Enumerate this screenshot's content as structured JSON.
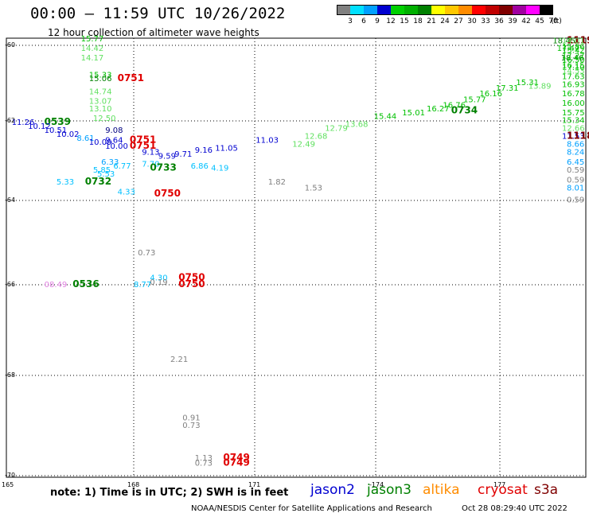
{
  "header": {
    "title": "00:00 – 11:59 UTC 10/26/2022",
    "subtitle": "12 hour collection of altimeter wave heights"
  },
  "colorbar": {
    "unit": "(ft)",
    "labels": [
      "3",
      "6",
      "9",
      "12",
      "15",
      "18",
      "21",
      "24",
      "27",
      "30",
      "33",
      "36",
      "39",
      "42",
      "45",
      "70"
    ],
    "colors": [
      "#808080",
      "#00e0ff",
      "#00a0ff",
      "#0000d0",
      "#00d000",
      "#00b000",
      "#008000",
      "#ffff00",
      "#ffc800",
      "#ff8c00",
      "#ff0000",
      "#c00000",
      "#800000",
      "#a000a0",
      "#ff00ff",
      "#000000"
    ]
  },
  "axes": {
    "lat_labels": [
      "-60",
      "-62",
      "-64",
      "-66",
      "-68",
      "-70"
    ],
    "lon_labels": [
      "165",
      "168",
      "171",
      "-174",
      "177"
    ]
  },
  "note": "note: 1) Time is in UTC; 2) SWH is in feet",
  "legend": [
    {
      "name": "jason2",
      "color": "#0000d0"
    },
    {
      "name": "jason3",
      "color": "#008000"
    },
    {
      "name": "altika",
      "color": "#ff8c00"
    },
    {
      "name": "cryosat",
      "color": "#e00000"
    },
    {
      "name": "s3a",
      "color": "#800000"
    }
  ],
  "footer": {
    "credit": "NOAA/NESDIS Center for Satellite Applications and Research",
    "timestamp": "Oct 28 08:29:40 UTC 2022"
  },
  "labels": [
    {
      "t": "15.77",
      "lon": 166.7,
      "lat": -59.9,
      "c": "#00c000"
    },
    {
      "t": "14.42",
      "lon": 166.7,
      "lat": -60.15,
      "c": "#60e060"
    },
    {
      "t": "14.17",
      "lon": 166.7,
      "lat": -60.4,
      "c": "#60e060"
    },
    {
      "t": "15.33",
      "lon": 166.9,
      "lat": -60.85,
      "c": "#00c000"
    },
    {
      "t": "15.06",
      "lon": 166.9,
      "lat": -60.95,
      "c": "#008000"
    },
    {
      "t": "0751",
      "lon": 167.6,
      "lat": -60.95,
      "c": "#e00000",
      "b": 1
    },
    {
      "t": "14.74",
      "lon": 166.9,
      "lat": -61.3,
      "c": "#60e060"
    },
    {
      "t": "13.07",
      "lon": 166.9,
      "lat": -61.55,
      "c": "#60e060"
    },
    {
      "t": "13.10",
      "lon": 166.9,
      "lat": -61.75,
      "c": "#60e060"
    },
    {
      "t": "12.50",
      "lon": 167.0,
      "lat": -62.0,
      "c": "#60e060"
    },
    {
      "t": "11.26",
      "lon": 165.0,
      "lat": -62.1,
      "c": "#0000d0"
    },
    {
      "t": "0539",
      "lon": 165.8,
      "lat": -62.1,
      "c": "#008000",
      "b": 1
    },
    {
      "t": "10.12",
      "lon": 165.4,
      "lat": -62.2,
      "c": "#0000d0"
    },
    {
      "t": "10.51",
      "lon": 165.8,
      "lat": -62.3,
      "c": "#0000d0"
    },
    {
      "t": "10.02",
      "lon": 166.1,
      "lat": -62.4,
      "c": "#0000d0"
    },
    {
      "t": "9.08",
      "lon": 167.3,
      "lat": -62.3,
      "c": "#000080"
    },
    {
      "t": "8.61",
      "lon": 166.6,
      "lat": -62.5,
      "c": "#00a0ff"
    },
    {
      "t": "10.09",
      "lon": 166.9,
      "lat": -62.6,
      "c": "#0000d0"
    },
    {
      "t": "9.64",
      "lon": 167.3,
      "lat": -62.55,
      "c": "#0000d0"
    },
    {
      "t": "0751",
      "lon": 167.9,
      "lat": -62.55,
      "c": "#e00000",
      "b": 1
    },
    {
      "t": "10.00",
      "lon": 167.3,
      "lat": -62.7,
      "c": "#0000d0"
    },
    {
      "t": "0751",
      "lon": 167.9,
      "lat": -62.7,
      "c": "#e00000",
      "b": 1
    },
    {
      "t": "9.13",
      "lon": 168.2,
      "lat": -62.85,
      "c": "#0000d0"
    },
    {
      "t": "9.59",
      "lon": 168.6,
      "lat": -62.95,
      "c": "#0000d0"
    },
    {
      "t": "9.71",
      "lon": 169.0,
      "lat": -62.9,
      "c": "#0000d0"
    },
    {
      "t": "9.16",
      "lon": 169.5,
      "lat": -62.8,
      "c": "#0000d0"
    },
    {
      "t": "11.05",
      "lon": 170.0,
      "lat": -62.75,
      "c": "#0000d0"
    },
    {
      "t": "11.03",
      "lon": 171.0,
      "lat": -62.55,
      "c": "#0000d0"
    },
    {
      "t": "12.49",
      "lon": 171.9,
      "lat": -62.65,
      "c": "#60e060"
    },
    {
      "t": "12.68",
      "lon": 172.2,
      "lat": -62.45,
      "c": "#60e060"
    },
    {
      "t": "12.79",
      "lon": 172.7,
      "lat": -62.25,
      "c": "#60e060"
    },
    {
      "t": "13.68",
      "lon": 173.2,
      "lat": -62.15,
      "c": "#60e060"
    },
    {
      "t": "15.44",
      "lon": 173.9,
      "lat": -61.95,
      "c": "#00c000"
    },
    {
      "t": "15.01",
      "lon": 174.6,
      "lat": -61.85,
      "c": "#00c000"
    },
    {
      "t": "16.27",
      "lon": 175.2,
      "lat": -61.75,
      "c": "#00c000"
    },
    {
      "t": "16.76",
      "lon": 175.6,
      "lat": -61.65,
      "c": "#00c000"
    },
    {
      "t": "0734",
      "lon": 175.8,
      "lat": -61.8,
      "c": "#008000",
      "b": 1
    },
    {
      "t": "15.77",
      "lon": 176.1,
      "lat": -61.5,
      "c": "#00c000"
    },
    {
      "t": "16.16",
      "lon": 176.5,
      "lat": -61.35,
      "c": "#00c000"
    },
    {
      "t": "17.31",
      "lon": 176.9,
      "lat": -61.2,
      "c": "#00c000"
    },
    {
      "t": "15.31",
      "lon": 177.4,
      "lat": -61.05,
      "c": "#00c000"
    },
    {
      "t": "13.89",
      "lon": 177.7,
      "lat": -61.15,
      "c": "#60e060"
    },
    {
      "t": "18.45",
      "lon": 178.3,
      "lat": -59.95,
      "c": "#008000"
    },
    {
      "t": "1119",
      "lon": 179.0,
      "lat": -59.95,
      "c": "#800000",
      "b": 1
    },
    {
      "t": "17.47",
      "lon": 178.4,
      "lat": -60.15,
      "c": "#00c000"
    },
    {
      "t": "18.46",
      "lon": 178.5,
      "lat": -60.4,
      "c": "#008000"
    },
    {
      "t": "17.10",
      "lon": 178.6,
      "lat": -60.65,
      "c": "#00c000"
    },
    {
      "t": "17.63",
      "lon": 178.8,
      "lat": -60.9,
      "c": "#00c000"
    },
    {
      "t": "16.93",
      "lon": 179.0,
      "lat": -61.1,
      "c": "#00c000"
    },
    {
      "t": "16.78",
      "lon": 179.2,
      "lat": -61.35,
      "c": "#00c000"
    },
    {
      "t": "16.00",
      "lon": 179.3,
      "lat": -61.6,
      "c": "#00c000"
    },
    {
      "t": "15.75",
      "lon": 179.6,
      "lat": -61.85,
      "c": "#00c000"
    },
    {
      "t": "15.34",
      "lon": 179.8,
      "lat": -62.05,
      "c": "#00c000"
    },
    {
      "t": "12.66",
      "lon": 180.0,
      "lat": -62.25,
      "c": "#60e060"
    },
    {
      "t": "14.53",
      "lon": 179.6,
      "lat": -60.75,
      "c": "#60e060"
    },
    {
      "t": "16.15",
      "lon": 180.1,
      "lat": -60.6,
      "c": "#00c000"
    },
    {
      "t": "16.50",
      "lon": 180.5,
      "lat": -60.45,
      "c": "#00c000"
    },
    {
      "t": "17.27",
      "lon": 180.9,
      "lat": -60.35,
      "c": "#00c000"
    },
    {
      "t": "15.42",
      "lon": 181.3,
      "lat": -60.2,
      "c": "#00c000"
    },
    {
      "t": "15.86",
      "lon": 181.8,
      "lat": -60.1,
      "c": "#00c000"
    },
    {
      "t": "14.01",
      "lon": 182.4,
      "lat": -59.95,
      "c": "#60e060"
    },
    {
      "t": "11.53",
      "lon": 180.2,
      "lat": -62.45,
      "c": "#0000d0"
    },
    {
      "t": "1118",
      "lon": 181.0,
      "lat": -62.45,
      "c": "#800000",
      "b": 1
    },
    {
      "t": "8.66",
      "lon": 180.5,
      "lat": -62.65,
      "c": "#00a0ff"
    },
    {
      "t": "8.24",
      "lon": 180.7,
      "lat": -62.85,
      "c": "#00a0ff"
    },
    {
      "t": "6.45",
      "lon": 180.9,
      "lat": -63.1,
      "c": "#00a0ff"
    },
    {
      "t": "0.59",
      "lon": 181.1,
      "lat": -63.3,
      "c": "#808080"
    },
    {
      "t": "0.59",
      "lon": 181.3,
      "lat": -63.55,
      "c": "#808080"
    },
    {
      "t": "8.01",
      "lon": 181.5,
      "lat": -63.75,
      "c": "#00a0ff"
    },
    {
      "t": "0.59",
      "lon": 182.0,
      "lat": -64.05,
      "c": "#808080"
    },
    {
      "t": "6.33",
      "lon": 167.2,
      "lat": -63.1,
      "c": "#00a0ff"
    },
    {
      "t": "6.77",
      "lon": 167.5,
      "lat": -63.2,
      "c": "#00c0ff"
    },
    {
      "t": "5.85",
      "lon": 167.0,
      "lat": -63.3,
      "c": "#00c0ff"
    },
    {
      "t": "5.53",
      "lon": 167.1,
      "lat": -63.4,
      "c": "#00c0ff"
    },
    {
      "t": "7.70",
      "lon": 168.2,
      "lat": -63.15,
      "c": "#00c0ff"
    },
    {
      "t": "0733",
      "lon": 168.4,
      "lat": -63.25,
      "c": "#008000",
      "b": 1
    },
    {
      "t": "6.86",
      "lon": 169.4,
      "lat": -63.2,
      "c": "#00c0ff"
    },
    {
      "t": "4.19",
      "lon": 169.9,
      "lat": -63.25,
      "c": "#00c0ff"
    },
    {
      "t": "5.33",
      "lon": 166.1,
      "lat": -63.6,
      "c": "#00c0ff"
    },
    {
      "t": "0732",
      "lon": 166.8,
      "lat": -63.6,
      "c": "#008000",
      "b": 1
    },
    {
      "t": "1.82",
      "lon": 171.3,
      "lat": -63.6,
      "c": "#808080"
    },
    {
      "t": "1.53",
      "lon": 172.2,
      "lat": -63.75,
      "c": "#808080"
    },
    {
      "t": "4.33",
      "lon": 167.6,
      "lat": -63.85,
      "c": "#00c0ff"
    },
    {
      "t": "0750",
      "lon": 168.5,
      "lat": -63.9,
      "c": "#e00000",
      "b": 1
    },
    {
      "t": "0.73",
      "lon": 168.1,
      "lat": -65.3,
      "c": "#808080"
    },
    {
      "t": "4.30",
      "lon": 168.4,
      "lat": -65.9,
      "c": "#00c0ff"
    },
    {
      "t": "0750",
      "lon": 169.1,
      "lat": -65.9,
      "c": "#e00000",
      "b": 1
    },
    {
      "t": "8.77",
      "lon": 168.0,
      "lat": -66.05,
      "c": "#00c0ff"
    },
    {
      "t": "0.19",
      "lon": 168.4,
      "lat": -66.0,
      "c": "#808080"
    },
    {
      "t": "0750",
      "lon": 169.1,
      "lat": -66.05,
      "c": "#e00000",
      "b": 1
    },
    {
      "t": "08.49",
      "lon": 165.8,
      "lat": -66.05,
      "c": "#e080e0"
    },
    {
      "t": "0536",
      "lon": 166.5,
      "lat": -66.05,
      "c": "#008000",
      "b": 1
    },
    {
      "t": "2.21",
      "lon": 168.9,
      "lat": -67.7,
      "c": "#808080"
    },
    {
      "t": "0.91",
      "lon": 169.2,
      "lat": -68.9,
      "c": "#808080"
    },
    {
      "t": "0.73",
      "lon": 169.2,
      "lat": -69.05,
      "c": "#808080"
    },
    {
      "t": "1.13",
      "lon": 169.5,
      "lat": -69.7,
      "c": "#808080"
    },
    {
      "t": "0.73",
      "lon": 169.5,
      "lat": -69.8,
      "c": "#808080"
    },
    {
      "t": "0749",
      "lon": 170.2,
      "lat": -69.7,
      "c": "#e00000",
      "b": 1
    },
    {
      "t": "0749",
      "lon": 170.2,
      "lat": -69.8,
      "c": "#e00000",
      "b": 1
    }
  ]
}
